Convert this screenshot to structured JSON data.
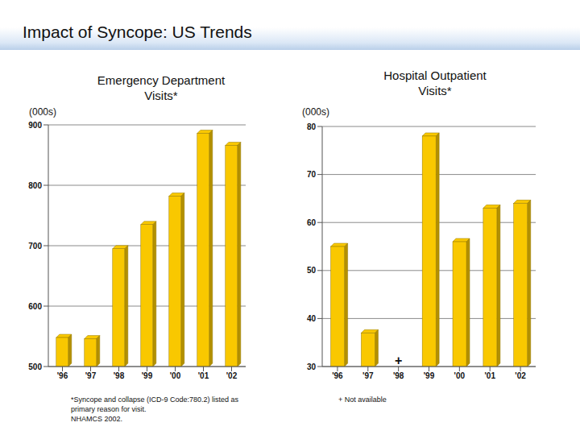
{
  "title": "Impact of Syncope: US Trends",
  "chart_data": [
    {
      "type": "bar",
      "title": "Emergency Department Visits*",
      "y_label": "(000s)",
      "categories": [
        "'96",
        "'97",
        "'98",
        "'99",
        "'00",
        "'01",
        "'02"
      ],
      "values": [
        548,
        546,
        695,
        735,
        782,
        886,
        866
      ],
      "color": "#f9c800",
      "ylim": [
        500,
        900
      ],
      "yticks": [
        500,
        600,
        700,
        800,
        900
      ],
      "grid": true,
      "notes": [
        "*Syncope and collapse (ICD-9 Code:780.2) listed as",
        "primary reason for visit.",
        "NHAMCS 2002."
      ]
    },
    {
      "type": "bar",
      "title": "Hospital Outpatient Visits*",
      "y_label": "(000s)",
      "categories": [
        "'96",
        "'97",
        "'98",
        "'99",
        "'00",
        "'01",
        "'02"
      ],
      "values": [
        55,
        37,
        null,
        78,
        56,
        63,
        64
      ],
      "color": "#f9c800",
      "ylim": [
        30,
        80
      ],
      "yticks": [
        30,
        40,
        50,
        60,
        70,
        80
      ],
      "grid": true,
      "annotations": [
        {
          "x": "'98",
          "text": "+"
        }
      ],
      "notes": [
        "+ Not available"
      ]
    }
  ]
}
